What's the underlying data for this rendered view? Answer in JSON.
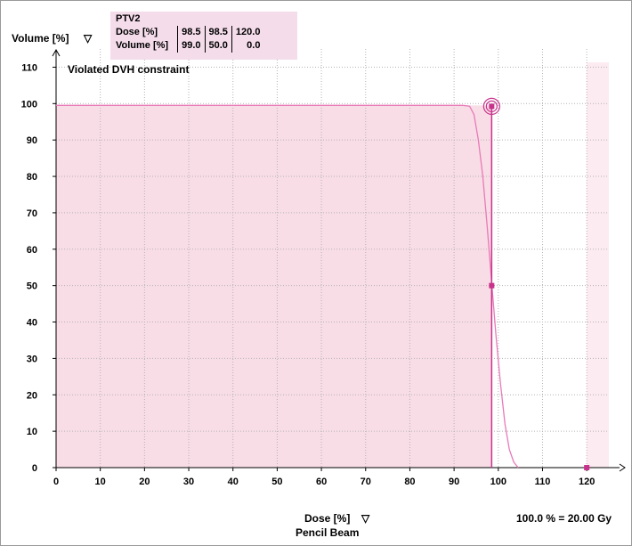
{
  "chart_data": {
    "type": "line",
    "title": "",
    "xlabel": "Dose [%]",
    "xlabel_arrow": "▽",
    "xlabel_sub": "Pencil Beam",
    "ylabel": "Volume [%]",
    "ylabel_arrow": "▽",
    "xlim": [
      0,
      125
    ],
    "ylim": [
      0,
      115
    ],
    "x_ticks": [
      0,
      10,
      20,
      30,
      40,
      50,
      60,
      70,
      80,
      90,
      100,
      110,
      120
    ],
    "y_ticks": [
      0,
      10,
      20,
      30,
      40,
      50,
      60,
      70,
      80,
      90,
      100,
      110
    ],
    "grid": true,
    "annotation": "Violated DVH constraint",
    "dose_reference": "100.0 % = 20.00 Gy",
    "series": [
      {
        "name": "PTV2",
        "color": "#e87ab8",
        "x": [
          0,
          92,
          93.5,
          94.5,
          95.5,
          96.5,
          97.5,
          98.5,
          99.5,
          100.5,
          101.5,
          102.5,
          103.5,
          104.5
        ],
        "y": [
          99.5,
          99.5,
          99.3,
          97,
          90,
          80,
          66,
          51,
          36,
          23,
          12,
          5,
          1.5,
          0
        ]
      }
    ],
    "constraint": {
      "structure": "PTV2",
      "row_labels": [
        "Dose [%]",
        "Volume [%]"
      ],
      "dose": [
        "98.5",
        "98.5",
        "120.0"
      ],
      "volume": [
        "99.0",
        "50.0",
        "0.0"
      ],
      "line_dose": 98.5,
      "region_color": "#f9dde6",
      "marker_color": "#c8328c",
      "points": [
        {
          "x": 98.5,
          "y": 99
        },
        {
          "x": 98.5,
          "y": 50
        },
        {
          "x": 120,
          "y": 0
        }
      ]
    },
    "violated_region": {
      "x_range": [
        0,
        98.5
      ],
      "y_max": 99.5
    },
    "high_dose_region": {
      "x_range": [
        120,
        125
      ]
    }
  }
}
